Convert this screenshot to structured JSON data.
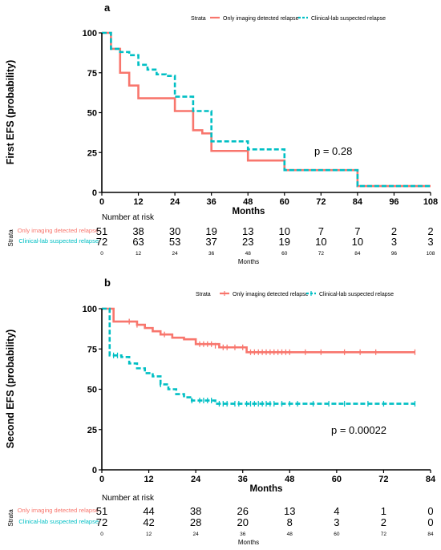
{
  "colors": {
    "imaging": "#f8766d",
    "clinical": "#00bfc4",
    "axis": "#000000"
  },
  "chart_data": [
    {
      "type": "line",
      "panel_label": "a",
      "title": "",
      "xlabel": "Months",
      "ylabel": "First EFS (probability)",
      "xlim": [
        0,
        108
      ],
      "ylim": [
        0,
        100
      ],
      "xticks": [
        0,
        12,
        24,
        36,
        48,
        60,
        72,
        84,
        96,
        108
      ],
      "yticks": [
        0,
        25,
        50,
        75,
        100
      ],
      "legend": {
        "title": "Strata",
        "position": "top",
        "entries": [
          "Only imaging detected relapse",
          "Clinical-lab suspected relapse"
        ]
      },
      "annotation": "p = 0.28",
      "series": [
        {
          "name": "Only imaging detected relapse",
          "style": "solid",
          "censor_marks": false,
          "x": [
            0,
            3,
            6,
            9,
            12,
            15,
            18,
            24,
            27,
            30,
            33,
            36,
            48,
            60,
            84,
            108
          ],
          "y": [
            100,
            90,
            75,
            67,
            59,
            59,
            59,
            51,
            51,
            39,
            37,
            26,
            20,
            14,
            4,
            4
          ]
        },
        {
          "name": "Clinical-lab suspected relapse",
          "style": "dashed",
          "censor_marks": false,
          "x": [
            0,
            3,
            6,
            9,
            12,
            15,
            18,
            21,
            24,
            30,
            36,
            48,
            60,
            84,
            108
          ],
          "y": [
            100,
            90,
            88,
            86,
            80,
            77,
            74,
            73,
            60,
            51,
            32,
            27,
            14,
            4,
            4
          ]
        }
      ],
      "risk_table": {
        "title": "Number at risk",
        "strata_label": "Strata",
        "xlabel": "Months",
        "times": [
          0,
          12,
          24,
          36,
          48,
          60,
          72,
          84,
          96,
          108
        ],
        "rows": [
          {
            "name": "Only imaging detected relapse",
            "values": [
              51,
              38,
              30,
              19,
              13,
              10,
              7,
              7,
              2,
              2
            ]
          },
          {
            "name": "Clinical-lab suspected relapse",
            "values": [
              72,
              63,
              53,
              37,
              23,
              19,
              10,
              10,
              3,
              3
            ]
          }
        ]
      }
    },
    {
      "type": "line",
      "panel_label": "b",
      "title": "",
      "xlabel": "Months",
      "ylabel": "Second EFS (probability)",
      "xlim": [
        0,
        84
      ],
      "ylim": [
        0,
        100
      ],
      "xticks": [
        0,
        12,
        24,
        36,
        48,
        60,
        72,
        84
      ],
      "yticks": [
        0,
        25,
        50,
        75,
        100
      ],
      "legend": {
        "title": "Strata",
        "position": "top",
        "entries": [
          "Only imaging detected relapse",
          "Clinical-lab suspected relapse"
        ]
      },
      "annotation": "p = 0.00022",
      "series": [
        {
          "name": "Only imaging detected relapse",
          "style": "solid",
          "censor_marks": true,
          "x": [
            0,
            3,
            9,
            11,
            13,
            15,
            18,
            21,
            24,
            30,
            37,
            80
          ],
          "y": [
            100,
            92,
            90,
            88,
            86,
            84,
            82,
            81,
            78,
            76,
            73,
            73
          ],
          "censor_x": [
            7,
            9,
            16,
            25,
            26,
            27,
            28,
            29,
            31,
            32,
            34,
            36,
            38,
            39,
            40,
            41,
            42,
            43,
            44,
            45,
            46,
            47,
            48,
            52,
            56,
            62,
            66,
            70,
            80
          ],
          "censor_y": [
            92,
            90,
            84,
            78,
            78,
            78,
            78,
            77,
            76,
            76,
            76,
            76,
            73,
            73,
            73,
            73,
            73,
            73,
            73,
            73,
            73,
            73,
            73,
            73,
            73,
            73,
            73,
            73,
            73
          ]
        },
        {
          "name": "Clinical-lab suspected relapse",
          "style": "dashed",
          "censor_marks": true,
          "x": [
            0,
            2,
            3,
            5,
            7,
            9,
            11,
            13,
            15,
            17,
            19,
            21,
            23,
            24,
            29,
            80
          ],
          "y": [
            100,
            71,
            71,
            70,
            66,
            63,
            60,
            58,
            53,
            50,
            47,
            45,
            43,
            43,
            41,
            41
          ],
          "censor_x": [
            3,
            4,
            15,
            23,
            25,
            26,
            27,
            28,
            30,
            31,
            32,
            34,
            35,
            37,
            38,
            39,
            40,
            41,
            42,
            43,
            44,
            46,
            48,
            50,
            54,
            58,
            62,
            68,
            72,
            80
          ],
          "censor_y": [
            71,
            71,
            53,
            43,
            43,
            43,
            43,
            43,
            41,
            41,
            41,
            41,
            41,
            41,
            41,
            41,
            41,
            41,
            41,
            41,
            41,
            41,
            41,
            41,
            41,
            41,
            41,
            41,
            41,
            41
          ]
        }
      ],
      "risk_table": {
        "title": "Number at risk",
        "strata_label": "Strata",
        "xlabel": "Months",
        "times": [
          0,
          12,
          24,
          36,
          48,
          60,
          72,
          84
        ],
        "rows": [
          {
            "name": "Only imaging detected relapse",
            "values": [
              51,
              44,
              38,
              26,
              13,
              4,
              1,
              0
            ]
          },
          {
            "name": "Clinical-lab suspected relapse",
            "values": [
              72,
              42,
              28,
              20,
              8,
              3,
              2,
              0
            ]
          }
        ]
      }
    }
  ]
}
